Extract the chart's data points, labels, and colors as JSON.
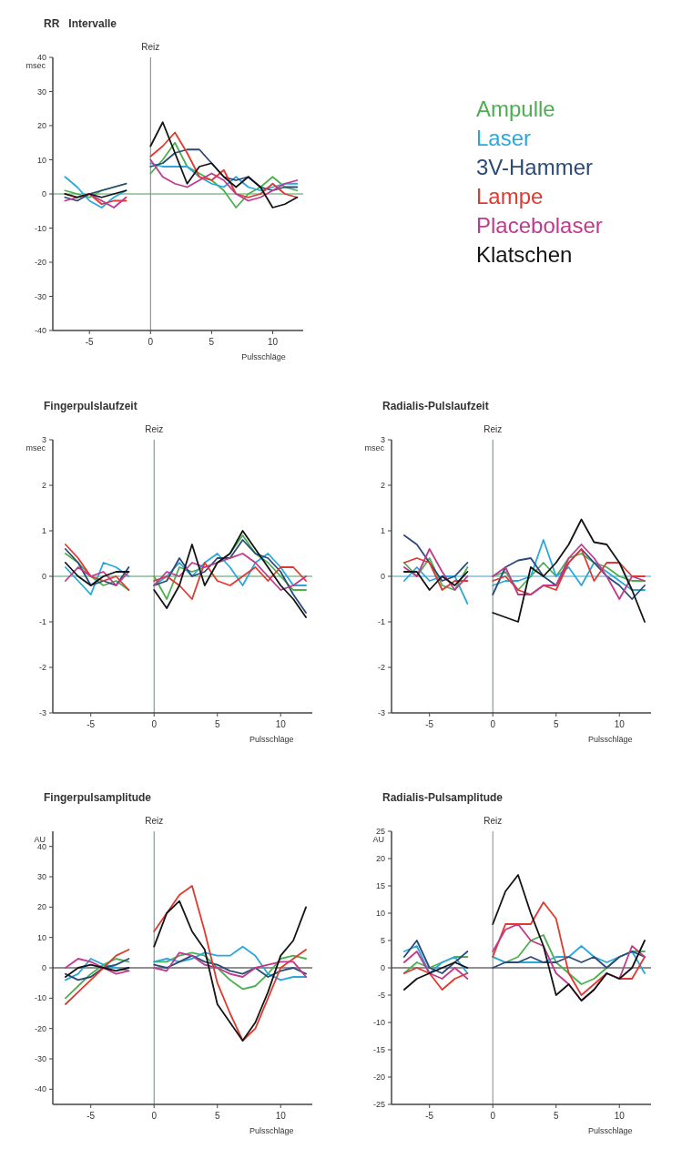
{
  "chart_data": [
    {
      "type": "line",
      "title": "RR   Intervalle",
      "xlabel": "Pulsschläge",
      "ylabel": "msec",
      "x": [
        -7,
        -6,
        -5,
        -4,
        -3,
        -2,
        -1,
        0,
        1,
        2,
        3,
        4,
        5,
        6,
        7,
        8,
        9,
        10,
        11,
        12
      ],
      "xlim": [
        -8,
        12.5
      ],
      "xticks": [
        -5,
        0,
        5,
        10
      ],
      "ylim": [
        -40,
        40
      ],
      "yticks": [
        -40,
        -30,
        -20,
        -10,
        0,
        10,
        20,
        30,
        40
      ],
      "legend": "right",
      "grid": false,
      "ref_lines": [
        {
          "axis": "x",
          "value": 0,
          "label": "Reiz",
          "color": "#6a8f7a"
        },
        {
          "axis": "y",
          "value": 0,
          "label": null,
          "color": "#4c9a5a"
        }
      ],
      "series": [
        {
          "name": "Ampulle",
          "color": "#4cb050",
          "values": [
            1,
            0,
            -1,
            1,
            2,
            3,
            null,
            6,
            10,
            15,
            8,
            6,
            4,
            1,
            -4,
            0,
            2,
            5,
            2,
            1
          ]
        },
        {
          "name": "Laser",
          "color": "#2aa8dc",
          "values": [
            5,
            2,
            -2,
            -4,
            -1,
            1,
            null,
            9,
            8,
            8,
            8,
            5,
            3,
            2,
            5,
            2,
            1,
            2,
            3,
            3
          ]
        },
        {
          "name": "3V-Hammer",
          "color": "#2b4a78",
          "values": [
            -1,
            -2,
            0,
            1,
            2,
            3,
            null,
            8,
            9,
            12,
            13,
            13,
            9,
            5,
            4,
            5,
            2,
            1,
            2,
            2
          ]
        },
        {
          "name": "Lampe",
          "color": "#e0392f",
          "values": [
            0,
            -1,
            0,
            -3,
            -2,
            -2,
            null,
            11,
            14,
            18,
            12,
            5,
            4,
            7,
            0,
            -1,
            0,
            3,
            0,
            -1
          ]
        },
        {
          "name": "Placebolaser",
          "color": "#c03a8c",
          "values": [
            -2,
            -1,
            0,
            -2,
            -4,
            -1,
            null,
            10,
            5,
            3,
            2,
            4,
            6,
            4,
            0,
            -2,
            -1,
            1,
            3,
            4
          ]
        },
        {
          "name": "Klatschen",
          "color": "#141414",
          "values": [
            0,
            -1,
            0,
            -1,
            0,
            1,
            null,
            14,
            21,
            12,
            3,
            8,
            9,
            5,
            2,
            5,
            2,
            -4,
            -3,
            -1
          ]
        }
      ]
    },
    {
      "type": "line",
      "title": "Fingerpulslaufzeit",
      "xlabel": "Pulsschläge",
      "ylabel": "msec",
      "x": [
        -7,
        -6,
        -5,
        -4,
        -3,
        -2,
        -1,
        0,
        1,
        2,
        3,
        4,
        5,
        6,
        7,
        8,
        9,
        10,
        11,
        12
      ],
      "xlim": [
        -8,
        12.5
      ],
      "xticks": [
        -5,
        0,
        5,
        10
      ],
      "ylim": [
        -3,
        3
      ],
      "yticks": [
        -3,
        -2,
        -1,
        0,
        1,
        2,
        3
      ],
      "grid": false,
      "ref_lines": [
        {
          "axis": "x",
          "value": 0,
          "label": "Reiz",
          "color": "#6a8f7a"
        },
        {
          "axis": "y",
          "value": 0,
          "label": null,
          "color": "#4c9a5a"
        }
      ],
      "series": [
        {
          "color": "#4cb050",
          "values": [
            0.5,
            0.3,
            0,
            -0.2,
            -0.1,
            -0.3,
            null,
            0,
            -0.5,
            0.2,
            0.1,
            0.2,
            0.3,
            0.5,
            0.9,
            0.5,
            0.3,
            0,
            -0.3,
            -0.3
          ]
        },
        {
          "color": "#2aa8dc",
          "values": [
            0.2,
            -0.1,
            -0.4,
            0.3,
            0.2,
            0,
            null,
            -0.2,
            0,
            0.3,
            0,
            0.3,
            0.5,
            0.2,
            -0.2,
            0.3,
            0.5,
            0.2,
            -0.2,
            -0.2
          ]
        },
        {
          "color": "#2b4a78",
          "values": [
            0.6,
            0.3,
            -0.2,
            -0.1,
            -0.2,
            0.2,
            null,
            -0.2,
            -0.1,
            0.4,
            0,
            0.1,
            0.4,
            0.4,
            0.8,
            0.5,
            0.4,
            0.1,
            -0.4,
            -0.8
          ]
        },
        {
          "color": "#e0392f",
          "values": [
            0.7,
            0.4,
            0,
            -0.1,
            0,
            -0.3,
            null,
            -0.1,
            0,
            -0.2,
            -0.5,
            0.3,
            -0.1,
            -0.2,
            0,
            0.2,
            -0.1,
            0.2,
            0.2,
            -0.1
          ]
        },
        {
          "color": "#c03a8c",
          "values": [
            -0.1,
            0.2,
            0,
            0.1,
            -0.2,
            0.1,
            null,
            -0.2,
            0.1,
            0,
            0.3,
            0.2,
            0.3,
            0.4,
            0.5,
            0.3,
            0,
            -0.3,
            -0.2,
            0
          ]
        },
        {
          "color": "#141414",
          "values": [
            0.3,
            0,
            -0.2,
            0,
            0.1,
            0.1,
            null,
            -0.3,
            -0.7,
            -0.2,
            0.7,
            -0.2,
            0.3,
            0.5,
            1,
            0.6,
            0.2,
            -0.2,
            -0.5,
            -0.9
          ]
        }
      ]
    },
    {
      "type": "line",
      "title": "Radialis-Pulslaufzeit",
      "xlabel": "Pulsschläge",
      "ylabel": "msec",
      "x": [
        -7,
        -6,
        -5,
        -4,
        -3,
        -2,
        -1,
        0,
        1,
        2,
        3,
        4,
        5,
        6,
        7,
        8,
        9,
        10,
        11,
        12
      ],
      "xlim": [
        -8,
        12.5
      ],
      "xticks": [
        -5,
        0,
        5,
        10
      ],
      "ylim": [
        -3,
        3
      ],
      "yticks": [
        -3,
        -2,
        -1,
        0,
        1,
        2,
        3
      ],
      "grid": false,
      "ref_lines": [
        {
          "axis": "x",
          "value": 0,
          "label": "Reiz",
          "color": "#6a8f7a"
        },
        {
          "axis": "y",
          "value": 0,
          "label": null,
          "color": "#3aa0c0"
        }
      ],
      "series": [
        {
          "color": "#4cb050",
          "values": [
            0.3,
            0,
            0.4,
            -0.2,
            -0.3,
            0.2,
            null,
            0,
            0.1,
            -0.3,
            0,
            0.3,
            0,
            0.4,
            0.5,
            0.3,
            0.2,
            0,
            -0.1,
            -0.1
          ]
        },
        {
          "color": "#2aa8dc",
          "values": [
            -0.1,
            0.2,
            -0.1,
            0,
            0,
            -0.6,
            null,
            -0.2,
            -0.1,
            -0.1,
            0,
            0.8,
            0,
            0.2,
            -0.2,
            0.3,
            0.1,
            -0.1,
            -0.3,
            -0.3
          ]
        },
        {
          "color": "#2b4a78",
          "values": [
            0.9,
            0.7,
            0.3,
            -0.1,
            0,
            0.3,
            null,
            -0.4,
            0.2,
            0.35,
            0.4,
            0,
            -0.2,
            0.3,
            0.6,
            0.3,
            0,
            -0.2,
            -0.5,
            -0.2
          ]
        },
        {
          "color": "#e0392f",
          "values": [
            0.3,
            0.4,
            0.3,
            -0.3,
            -0.1,
            -0.1,
            null,
            -0.1,
            0,
            -0.3,
            -0.4,
            -0.2,
            -0.3,
            0.3,
            0.6,
            -0.1,
            0.3,
            0.3,
            0,
            0
          ]
        },
        {
          "color": "#c03a8c",
          "values": [
            0.2,
            0,
            0.6,
            0.1,
            -0.3,
            0,
            null,
            0,
            0.2,
            -0.4,
            -0.4,
            -0.2,
            -0.2,
            0.4,
            0.7,
            0.4,
            0,
            -0.5,
            0,
            -0.1
          ]
        },
        {
          "color": "#141414",
          "values": [
            0.1,
            0.1,
            -0.3,
            0,
            -0.2,
            0.1,
            null,
            -0.8,
            -0.9,
            -1,
            0.2,
            0,
            0.3,
            0.7,
            1.25,
            0.75,
            0.7,
            0.3,
            -0.3,
            -1
          ]
        }
      ]
    },
    {
      "type": "line",
      "title": "Fingerpulsamplitude",
      "xlabel": "Pulsschläge",
      "ylabel": "AU",
      "x": [
        -7,
        -6,
        -5,
        -4,
        -3,
        -2,
        -1,
        0,
        1,
        2,
        3,
        4,
        5,
        6,
        7,
        8,
        9,
        10,
        11,
        12
      ],
      "xlim": [
        -8,
        12.5
      ],
      "xticks": [
        -5,
        0,
        5,
        10
      ],
      "ylim": [
        -45,
        45
      ],
      "yticks": [
        -40,
        -30,
        -20,
        -10,
        0,
        10,
        20,
        30,
        40
      ],
      "grid": false,
      "ref_lines": [
        {
          "axis": "x",
          "value": 0,
          "label": "Reiz",
          "color": "#6a8f7a"
        },
        {
          "axis": "y",
          "value": 0,
          "label": null,
          "color": "#222222"
        }
      ],
      "series": [
        {
          "color": "#4cb050",
          "values": [
            -10,
            -6,
            -2,
            1,
            3,
            2,
            null,
            2,
            2,
            4,
            5,
            4,
            0,
            -4,
            -7,
            -6,
            -2,
            3,
            4,
            3
          ]
        },
        {
          "color": "#2aa8dc",
          "values": [
            -4,
            -2,
            3,
            1,
            0,
            -1,
            null,
            2,
            3,
            2,
            3,
            5,
            4,
            4,
            7,
            4,
            -2,
            -4,
            -3,
            -3
          ]
        },
        {
          "color": "#2b4a78",
          "values": [
            -2,
            -4,
            -3,
            0,
            1,
            3,
            null,
            1,
            0,
            2,
            4,
            2,
            1,
            -1,
            -2,
            0,
            -3,
            -1,
            0,
            -2
          ]
        },
        {
          "color": "#e0392f",
          "values": [
            -12,
            -8,
            -4,
            0,
            4,
            6,
            null,
            12,
            18,
            24,
            27,
            12,
            -5,
            -15,
            -24,
            -20,
            -10,
            0,
            3,
            6
          ]
        },
        {
          "color": "#c03a8c",
          "values": [
            0,
            3,
            2,
            0,
            -2,
            -1,
            null,
            0,
            -1,
            5,
            4,
            1,
            0,
            -2,
            -3,
            0,
            1,
            2,
            2,
            -3
          ]
        },
        {
          "color": "#141414",
          "values": [
            -3,
            0,
            1,
            0,
            -1,
            0,
            null,
            7,
            18,
            22,
            12,
            6,
            -12,
            -18,
            -24,
            -18,
            -8,
            4,
            9,
            20
          ]
        }
      ]
    },
    {
      "type": "line",
      "title": "Radialis-Pulsamplitude",
      "xlabel": "Pulsschläge",
      "ylabel": "AU",
      "x": [
        -7,
        -6,
        -5,
        -4,
        -3,
        -2,
        -1,
        0,
        1,
        2,
        3,
        4,
        5,
        6,
        7,
        8,
        9,
        10,
        11,
        12
      ],
      "xlim": [
        -8,
        12.5
      ],
      "xticks": [
        -5,
        0,
        5,
        10
      ],
      "ylim": [
        -25,
        25
      ],
      "yticks": [
        -25,
        -20,
        -15,
        -10,
        -5,
        0,
        5,
        10,
        15,
        20,
        25
      ],
      "grid": false,
      "ref_lines": [
        {
          "axis": "x",
          "value": 0,
          "label": "Reiz",
          "color": "#8a8a8a"
        },
        {
          "axis": "y",
          "value": 0,
          "label": null,
          "color": "#222222"
        }
      ],
      "series": [
        {
          "color": "#4cb050",
          "values": [
            -1,
            1,
            0,
            1,
            2,
            2,
            null,
            2,
            1,
            2,
            5,
            6,
            1,
            -1,
            -3,
            -2,
            0,
            2,
            3,
            3
          ]
        },
        {
          "color": "#2aa8dc",
          "values": [
            3,
            4,
            -1,
            1,
            2,
            -1,
            null,
            2,
            1,
            1,
            1,
            1,
            2,
            2,
            4,
            2,
            1,
            2,
            3,
            -1
          ]
        },
        {
          "color": "#2b4a78",
          "values": [
            2,
            5,
            0,
            -1,
            1,
            3,
            null,
            0,
            1,
            1,
            2,
            1,
            1,
            2,
            1,
            2,
            0,
            2,
            3,
            2
          ]
        },
        {
          "color": "#e0392f",
          "values": [
            -1,
            0,
            -1,
            -4,
            -2,
            -1,
            null,
            2,
            8,
            8,
            8,
            12,
            9,
            -1,
            -5,
            -3,
            -1,
            -2,
            -2,
            2
          ]
        },
        {
          "color": "#c03a8c",
          "values": [
            1,
            3,
            -1,
            -2,
            0,
            -2,
            null,
            3,
            7,
            8,
            5,
            4,
            -1,
            -3,
            -6,
            -4,
            -1,
            -2,
            4,
            2
          ]
        },
        {
          "color": "#141414",
          "values": [
            -4,
            -2,
            -1,
            0,
            1,
            0,
            null,
            8,
            14,
            17,
            10,
            4,
            -5,
            -3,
            -6,
            -4,
            -1,
            -2,
            0,
            5
          ]
        }
      ]
    }
  ]
}
